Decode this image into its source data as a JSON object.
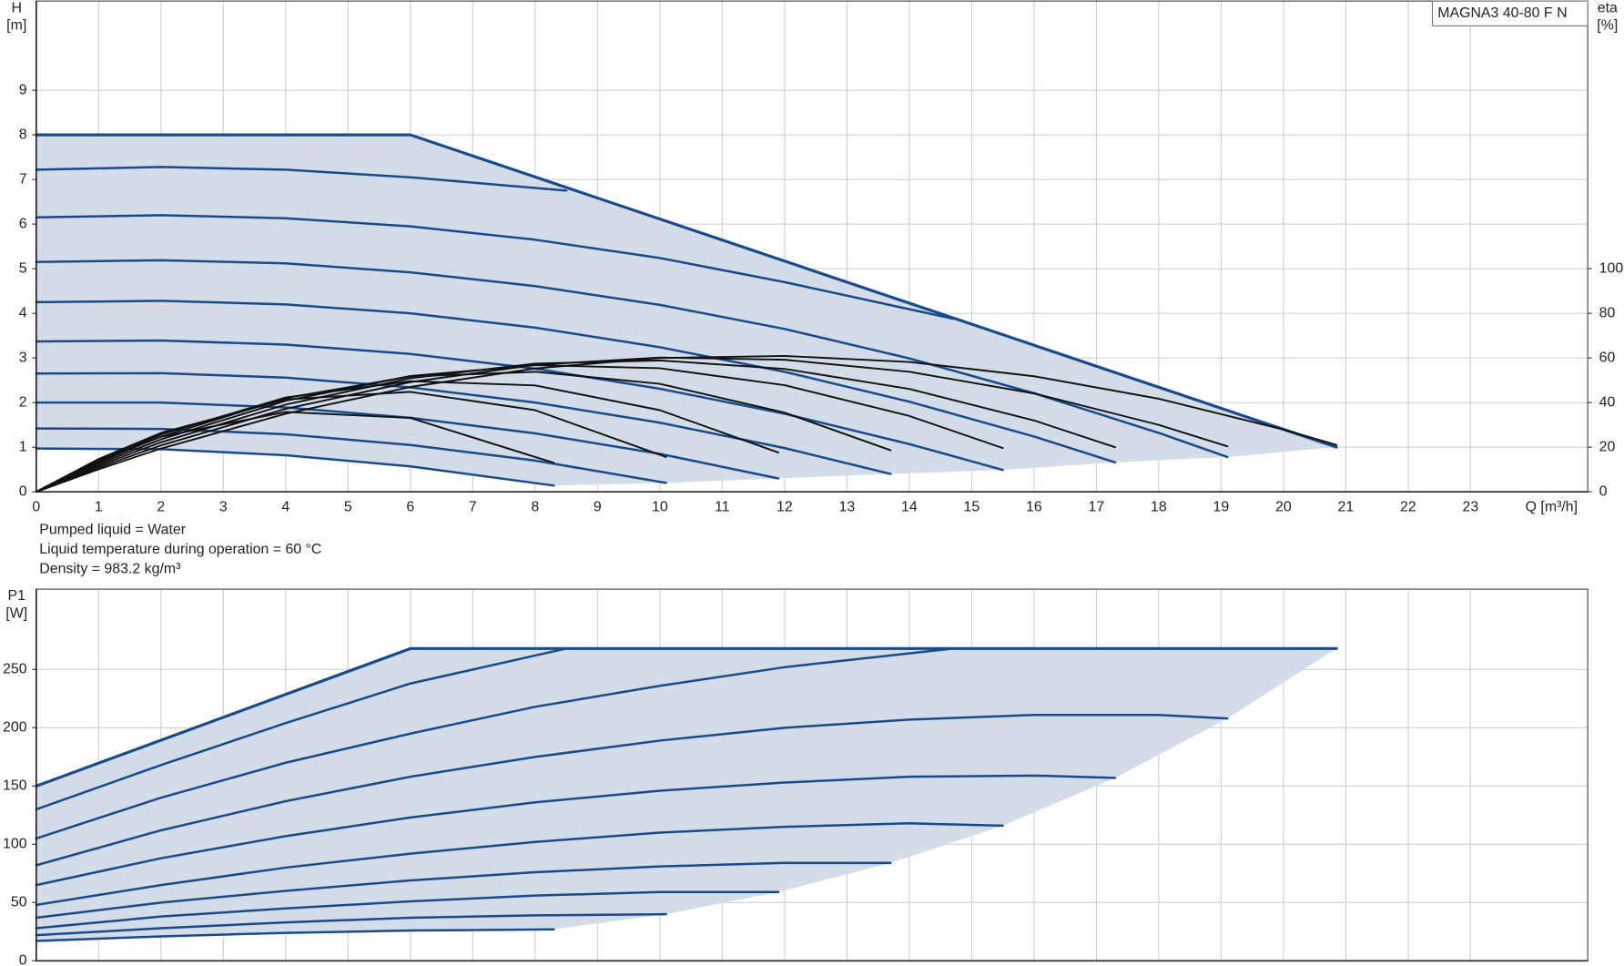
{
  "chart_data": [
    {
      "type": "line",
      "product": "MAGNA3 40-80 F N",
      "ylabel": "H",
      "yunit": "[m]",
      "y2label": "eta",
      "y2unit": "[%]",
      "xlabel": "Q [m³/h]",
      "notes": [
        "Pumped liquid = Water",
        "Liquid temperature during operation = 60 °C",
        "Density = 983.2 kg/m³"
      ],
      "xlim": [
        0,
        24.88
      ],
      "xticks": [
        0,
        1,
        2,
        3,
        4,
        5,
        6,
        7,
        8,
        9,
        10,
        11,
        12,
        13,
        14,
        15,
        16,
        17,
        18,
        19,
        20,
        21,
        22,
        23
      ],
      "show_xtick_labels": true,
      "ylim": [
        0,
        11
      ],
      "yticks": [
        0,
        1,
        2,
        3,
        4,
        5,
        6,
        7,
        8,
        9
      ],
      "y2lim": [
        0,
        220
      ],
      "y2ticks": [
        0,
        20,
        40,
        60,
        80,
        100
      ],
      "grid": true,
      "fill_color": "#d3dde9",
      "series": [
        {
          "color": "#1a4a8a",
          "x": [
            0,
            2,
            4,
            6,
            8.3
          ],
          "values": [
            0.97,
            0.955,
            0.82,
            0.57,
            0.14
          ]
        },
        {
          "color": "#1a4a8a",
          "x": [
            0,
            2,
            4,
            6,
            8,
            10.1
          ],
          "values": [
            1.42,
            1.41,
            1.29,
            1.05,
            0.7,
            0.2
          ]
        },
        {
          "color": "#1a4a8a",
          "x": [
            0,
            2,
            4,
            6,
            8,
            10,
            11.9
          ],
          "values": [
            2.0,
            2.0,
            1.89,
            1.66,
            1.31,
            0.85,
            0.3
          ]
        },
        {
          "color": "#1a4a8a",
          "x": [
            0,
            2,
            4,
            6,
            8,
            10,
            12,
            13.7
          ],
          "values": [
            2.65,
            2.66,
            2.56,
            2.34,
            2.0,
            1.55,
            0.98,
            0.4
          ]
        },
        {
          "color": "#1a4a8a",
          "x": [
            0,
            2,
            4,
            6,
            8,
            10,
            12,
            14,
            15.5
          ],
          "values": [
            3.37,
            3.39,
            3.3,
            3.09,
            2.76,
            2.31,
            1.75,
            1.07,
            0.49
          ]
        },
        {
          "color": "#1a4a8a",
          "x": [
            0,
            2,
            4,
            6,
            8,
            10,
            12,
            14,
            16,
            17.3
          ],
          "values": [
            4.25,
            4.28,
            4.2,
            4.0,
            3.68,
            3.24,
            2.69,
            2.02,
            1.24,
            0.66
          ]
        },
        {
          "color": "#1a4a8a",
          "x": [
            0,
            2,
            4,
            6,
            8,
            10,
            12,
            14,
            16,
            18,
            19.1
          ],
          "values": [
            5.15,
            5.19,
            5.12,
            4.92,
            4.61,
            4.19,
            3.65,
            2.99,
            2.21,
            1.32,
            0.78
          ]
        },
        {
          "color": "#1a4a8a",
          "x": [
            0,
            2,
            4,
            6,
            8,
            10,
            12,
            14.7
          ],
          "values": [
            6.15,
            6.2,
            6.13,
            5.95,
            5.65,
            5.24,
            4.7,
            3.88
          ]
        },
        {
          "color": "#1a4a8a",
          "x": [
            0,
            2,
            4,
            6,
            8.5
          ],
          "values": [
            7.22,
            7.28,
            7.22,
            7.05,
            6.75
          ]
        },
        {
          "color": "#1a4a8a",
          "x": [
            0,
            6,
            20.85
          ],
          "values": [
            8,
            8,
            1.0
          ]
        },
        {
          "color": "#111111",
          "axis": "y2",
          "x": [
            0,
            1,
            2,
            4,
            6,
            8.3
          ],
          "values": [
            0,
            14.1,
            24.7,
            35.8,
            33.1,
            13.0
          ]
        },
        {
          "color": "#111111",
          "axis": "y2",
          "x": [
            0,
            1,
            2,
            4,
            6,
            8,
            10.1
          ],
          "values": [
            0,
            14.7,
            26.4,
            41.4,
            44.8,
            36.6,
            15.6
          ]
        },
        {
          "color": "#111111",
          "axis": "y2",
          "x": [
            0,
            1,
            2,
            4,
            6,
            8,
            10,
            11.9
          ],
          "values": [
            0,
            14.0,
            25.7,
            42.3,
            49.6,
            47.7,
            36.6,
            17.6
          ]
        },
        {
          "color": "#111111",
          "axis": "y2",
          "x": [
            0,
            1,
            2,
            4,
            6,
            8,
            10,
            12,
            13.7
          ],
          "values": [
            0,
            13.3,
            24.7,
            42.0,
            51.7,
            53.8,
            48.4,
            35.5,
            18.6
          ]
        },
        {
          "color": "#111111",
          "axis": "y2",
          "x": [
            0,
            1,
            2,
            4,
            6,
            8,
            10,
            12,
            14,
            15.5
          ],
          "values": [
            0,
            12.5,
            23.5,
            40.8,
            51.9,
            56.8,
            55.4,
            47.8,
            34.0,
            19.6
          ]
        },
        {
          "color": "#111111",
          "axis": "y2",
          "x": [
            0,
            1,
            2,
            4,
            6,
            8,
            10,
            12,
            14,
            16,
            17.3
          ],
          "values": [
            0,
            11.7,
            22.2,
            39.1,
            50.9,
            57.5,
            58.9,
            55.1,
            46.1,
            32.0,
            20.0
          ]
        },
        {
          "color": "#111111",
          "axis": "y2",
          "x": [
            0,
            1,
            2,
            4,
            6,
            8,
            10,
            12,
            14,
            16,
            18,
            19.1
          ],
          "values": [
            0,
            10.9,
            20.8,
            37.2,
            49.2,
            56.9,
            60.2,
            59.2,
            53.8,
            44.1,
            30.0,
            20.4
          ]
        },
        {
          "color": "#111111",
          "axis": "y2",
          "x": [
            0,
            1,
            2,
            4,
            6,
            8,
            10,
            12,
            14,
            16,
            18,
            20,
            20.85
          ],
          "values": [
            0,
            10.1,
            19.4,
            35.0,
            47.0,
            55.3,
            60.0,
            60.9,
            58.2,
            51.8,
            41.7,
            27.9,
            21.0
          ]
        }
      ]
    },
    {
      "type": "line",
      "ylabel": "P1",
      "yunit": "[W]",
      "xlim": [
        0,
        24.88
      ],
      "xticks": [
        0,
        1,
        2,
        3,
        4,
        5,
        6,
        7,
        8,
        9,
        10,
        11,
        12,
        13,
        14,
        15,
        16,
        17,
        18,
        19,
        20,
        21,
        22,
        23
      ],
      "show_xtick_labels": false,
      "ylim": [
        0,
        319
      ],
      "yticks": [
        0,
        50,
        100,
        150,
        200,
        250
      ],
      "grid": true,
      "fill_color": "#d3dde9",
      "series": [
        {
          "color": "#1a4a8a",
          "x": [
            0,
            2,
            4,
            6,
            8.3
          ],
          "values": [
            17,
            21,
            24,
            26,
            27
          ]
        },
        {
          "color": "#1a4a8a",
          "x": [
            0,
            2,
            4,
            6,
            8,
            10.1
          ],
          "values": [
            22,
            28,
            33,
            37,
            39,
            40
          ]
        },
        {
          "color": "#1a4a8a",
          "x": [
            0,
            2,
            4,
            6,
            8,
            10,
            11.9
          ],
          "values": [
            28,
            38,
            45,
            51,
            56,
            59,
            59
          ]
        },
        {
          "color": "#1a4a8a",
          "x": [
            0,
            2,
            4,
            6,
            8,
            10,
            12,
            13.7
          ],
          "values": [
            37,
            50,
            60,
            69,
            76,
            81,
            84,
            84
          ]
        },
        {
          "color": "#1a4a8a",
          "x": [
            0,
            2,
            4,
            6,
            8,
            10,
            12,
            14,
            15.5
          ],
          "values": [
            48,
            65,
            80,
            92,
            102,
            110,
            115,
            118,
            116
          ]
        },
        {
          "color": "#1a4a8a",
          "x": [
            0,
            2,
            4,
            6,
            8,
            10,
            12,
            14,
            16,
            17.3
          ],
          "values": [
            65,
            88,
            107,
            123,
            136,
            146,
            153,
            158,
            159,
            157
          ]
        },
        {
          "color": "#1a4a8a",
          "x": [
            0,
            2,
            4,
            6,
            8,
            10,
            12,
            14,
            16,
            18,
            19.1
          ],
          "values": [
            82,
            112,
            137,
            158,
            175,
            189,
            200,
            207,
            211,
            211,
            208
          ]
        },
        {
          "color": "#1a4a8a",
          "x": [
            0,
            2,
            4,
            6,
            8,
            10,
            12,
            14.7
          ],
          "values": [
            105,
            140,
            170,
            195,
            218,
            236,
            252,
            268
          ]
        },
        {
          "color": "#1a4a8a",
          "x": [
            0,
            2,
            4,
            6,
            8.5
          ],
          "values": [
            130,
            168,
            204,
            238,
            268
          ]
        },
        {
          "color": "#1a4a8a",
          "x": [
            0,
            6,
            20.85
          ],
          "values": [
            150,
            268,
            268
          ]
        }
      ]
    }
  ]
}
